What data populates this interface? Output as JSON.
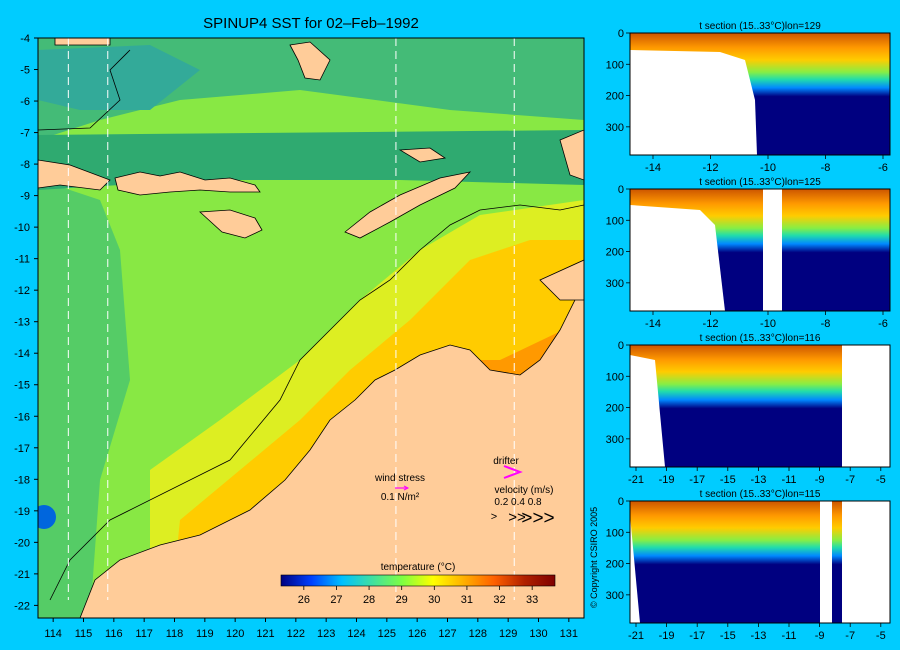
{
  "title": "SPINUP4 SST for 02–Feb–1992",
  "colors": {
    "background": "#00ccff",
    "land": "#ffcc99",
    "missing": "#ffffff",
    "drifter": "#ff00ff",
    "wind_arrow": "#ff00ff"
  },
  "map": {
    "lon_ticks": [
      114,
      115,
      116,
      117,
      118,
      119,
      120,
      121,
      122,
      123,
      124,
      125,
      126,
      127,
      128,
      129,
      130,
      131
    ],
    "lat_ticks": [
      -4,
      -5,
      -6,
      -7,
      -8,
      -9,
      -10,
      -11,
      -12,
      -13,
      -14,
      -15,
      -16,
      -17,
      -18,
      -19,
      -20,
      -21,
      -22
    ],
    "section_lons": [
      114.5,
      115.8,
      125.3,
      129.2
    ]
  },
  "legend": {
    "wind_label": "wind stress",
    "wind_value": "0.1 N/m²",
    "drifter_label": "drifter",
    "velocity_label": "velocity (m/s)",
    "velocity_values": "0.2 0.4 0.8",
    "velocity_glyphs": [
      ">",
      ">>",
      ">>>"
    ]
  },
  "colorbar": {
    "title": "temperature (°C)",
    "ticks": [
      26,
      27,
      28,
      29,
      30,
      31,
      32,
      33
    ],
    "stops": [
      "#000080",
      "#0040ff",
      "#00c0ff",
      "#40e0a0",
      "#80ff40",
      "#ffff00",
      "#ffb000",
      "#ff6000",
      "#b02000",
      "#800000"
    ]
  },
  "sections": [
    {
      "title": "t section (15..33°C)lon=129",
      "x_ticks": [
        "-14",
        "-12",
        "-10",
        "-8",
        "-6"
      ],
      "y_ticks": [
        "0",
        "100",
        "200",
        "300"
      ]
    },
    {
      "title": "t section (15..33°C)lon=125",
      "x_ticks": [
        "-14",
        "-12",
        "-10",
        "-8",
        "-6"
      ],
      "y_ticks": [
        "0",
        "100",
        "200",
        "300"
      ]
    },
    {
      "title": "t section (15..33°C)lon=116",
      "x_ticks": [
        "-21",
        "-19",
        "-17",
        "-15",
        "-13",
        "-11",
        "-9",
        "-7",
        "-5"
      ],
      "y_ticks": [
        "0",
        "100",
        "200",
        "300"
      ]
    },
    {
      "title": "t section (15..33°C)lon=115",
      "x_ticks": [
        "-21",
        "-19",
        "-17",
        "-15",
        "-13",
        "-11",
        "-9",
        "-7",
        "-5"
      ],
      "y_ticks": [
        "0",
        "100",
        "200",
        "300"
      ]
    }
  ],
  "copyright": "© Copyright CSIRO 2005"
}
